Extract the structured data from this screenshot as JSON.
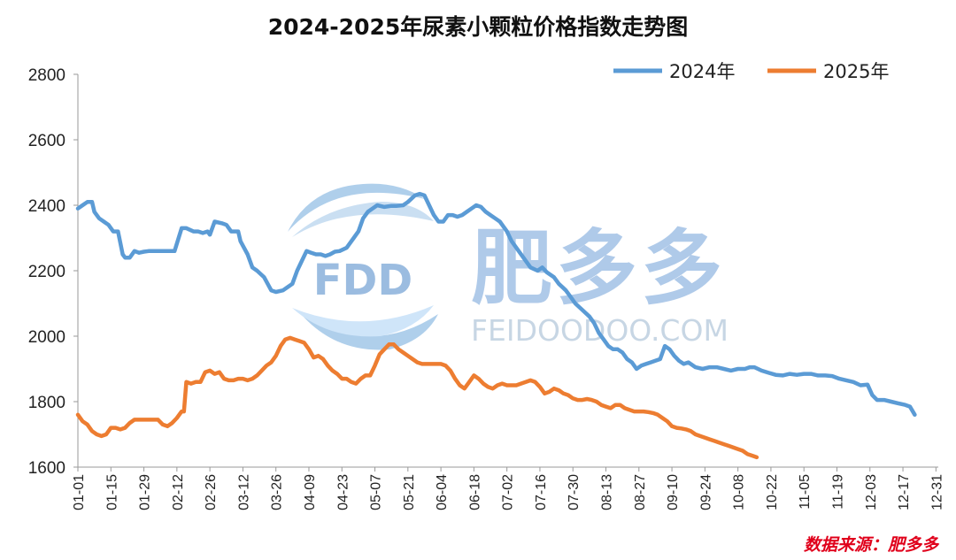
{
  "chart_data": {
    "type": "line",
    "title": "2024-2025年尿素小颗粒价格指数走势图",
    "xlabel": "",
    "ylabel": "",
    "ylim": [
      1600,
      2800
    ],
    "yticks": [
      1600,
      1800,
      2000,
      2200,
      2400,
      2600,
      2800
    ],
    "x_domain": [
      1,
      366
    ],
    "x_ticks": [
      {
        "label": "01-01",
        "day": 1
      },
      {
        "label": "01-15",
        "day": 15
      },
      {
        "label": "01-29",
        "day": 29
      },
      {
        "label": "02-12",
        "day": 43
      },
      {
        "label": "02-26",
        "day": 57
      },
      {
        "label": "03-12",
        "day": 71
      },
      {
        "label": "03-26",
        "day": 85
      },
      {
        "label": "04-09",
        "day": 99
      },
      {
        "label": "04-23",
        "day": 113
      },
      {
        "label": "05-07",
        "day": 127
      },
      {
        "label": "05-21",
        "day": 141
      },
      {
        "label": "06-04",
        "day": 155
      },
      {
        "label": "06-18",
        "day": 169
      },
      {
        "label": "07-02",
        "day": 183
      },
      {
        "label": "07-16",
        "day": 197
      },
      {
        "label": "07-30",
        "day": 211
      },
      {
        "label": "08-13",
        "day": 225
      },
      {
        "label": "08-27",
        "day": 239
      },
      {
        "label": "09-10",
        "day": 253
      },
      {
        "label": "09-24",
        "day": 267
      },
      {
        "label": "10-08",
        "day": 281
      },
      {
        "label": "10-22",
        "day": 295
      },
      {
        "label": "11-05",
        "day": 309
      },
      {
        "label": "11-19",
        "day": 323
      },
      {
        "label": "12-03",
        "day": 337
      },
      {
        "label": "12-17",
        "day": 351
      },
      {
        "label": "12-31",
        "day": 365
      }
    ],
    "legend_position": "top-right",
    "series": [
      {
        "name": "2024年",
        "color": "#5b9bd5",
        "points": [
          [
            1,
            2390
          ],
          [
            3,
            2400
          ],
          [
            5,
            2410
          ],
          [
            7,
            2410
          ],
          [
            8,
            2380
          ],
          [
            10,
            2360
          ],
          [
            12,
            2350
          ],
          [
            14,
            2340
          ],
          [
            16,
            2320
          ],
          [
            18,
            2320
          ],
          [
            20,
            2250
          ],
          [
            21,
            2240
          ],
          [
            23,
            2240
          ],
          [
            25,
            2260
          ],
          [
            27,
            2255
          ],
          [
            29,
            2258
          ],
          [
            31,
            2260
          ],
          [
            33,
            2260
          ],
          [
            36,
            2260
          ],
          [
            39,
            2260
          ],
          [
            42,
            2260
          ],
          [
            45,
            2330
          ],
          [
            47,
            2330
          ],
          [
            50,
            2320
          ],
          [
            52,
            2320
          ],
          [
            54,
            2315
          ],
          [
            56,
            2320
          ],
          [
            57,
            2310
          ],
          [
            59,
            2350
          ],
          [
            62,
            2345
          ],
          [
            64,
            2340
          ],
          [
            66,
            2320
          ],
          [
            69,
            2320
          ],
          [
            70,
            2290
          ],
          [
            73,
            2250
          ],
          [
            75,
            2210
          ],
          [
            77,
            2200
          ],
          [
            80,
            2180
          ],
          [
            83,
            2140
          ],
          [
            85,
            2135
          ],
          [
            88,
            2140
          ],
          [
            90,
            2150
          ],
          [
            92,
            2160
          ],
          [
            94,
            2200
          ],
          [
            96,
            2230
          ],
          [
            98,
            2260
          ],
          [
            100,
            2255
          ],
          [
            102,
            2250
          ],
          [
            104,
            2250
          ],
          [
            106,
            2245
          ],
          [
            108,
            2250
          ],
          [
            110,
            2258
          ],
          [
            112,
            2260
          ],
          [
            115,
            2270
          ],
          [
            118,
            2300
          ],
          [
            120,
            2320
          ],
          [
            122,
            2360
          ],
          [
            124,
            2380
          ],
          [
            126,
            2390
          ],
          [
            128,
            2400
          ],
          [
            131,
            2395
          ],
          [
            134,
            2398
          ],
          [
            136,
            2398
          ],
          [
            139,
            2400
          ],
          [
            141,
            2410
          ],
          [
            144,
            2430
          ],
          [
            146,
            2435
          ],
          [
            148,
            2430
          ],
          [
            150,
            2400
          ],
          [
            152,
            2370
          ],
          [
            154,
            2350
          ],
          [
            156,
            2350
          ],
          [
            158,
            2370
          ],
          [
            160,
            2370
          ],
          [
            162,
            2365
          ],
          [
            164,
            2370
          ],
          [
            166,
            2380
          ],
          [
            168,
            2390
          ],
          [
            170,
            2400
          ],
          [
            172,
            2395
          ],
          [
            174,
            2380
          ],
          [
            176,
            2370
          ],
          [
            178,
            2360
          ],
          [
            180,
            2350
          ],
          [
            183,
            2320
          ],
          [
            185,
            2290
          ],
          [
            188,
            2260
          ],
          [
            191,
            2230
          ],
          [
            193,
            2210
          ],
          [
            196,
            2200
          ],
          [
            198,
            2210
          ],
          [
            200,
            2195
          ],
          [
            203,
            2180
          ],
          [
            205,
            2160
          ],
          [
            208,
            2140
          ],
          [
            210,
            2120
          ],
          [
            212,
            2100
          ],
          [
            215,
            2080
          ],
          [
            218,
            2060
          ],
          [
            220,
            2040
          ],
          [
            222,
            2010
          ],
          [
            224,
            1990
          ],
          [
            226,
            1970
          ],
          [
            228,
            1960
          ],
          [
            230,
            1960
          ],
          [
            232,
            1950
          ],
          [
            234,
            1930
          ],
          [
            236,
            1920
          ],
          [
            238,
            1900
          ],
          [
            240,
            1910
          ],
          [
            242,
            1915
          ],
          [
            244,
            1920
          ],
          [
            246,
            1925
          ],
          [
            248,
            1930
          ],
          [
            250,
            1970
          ],
          [
            252,
            1960
          ],
          [
            254,
            1940
          ],
          [
            256,
            1925
          ],
          [
            258,
            1915
          ],
          [
            260,
            1920
          ],
          [
            263,
            1905
          ],
          [
            266,
            1900
          ],
          [
            269,
            1905
          ],
          [
            272,
            1905
          ],
          [
            275,
            1900
          ],
          [
            278,
            1895
          ],
          [
            281,
            1900
          ],
          [
            284,
            1900
          ],
          [
            286,
            1905
          ],
          [
            288,
            1905
          ],
          [
            291,
            1895
          ],
          [
            294,
            1888
          ],
          [
            297,
            1882
          ],
          [
            300,
            1880
          ],
          [
            303,
            1885
          ],
          [
            306,
            1882
          ],
          [
            309,
            1885
          ],
          [
            312,
            1885
          ],
          [
            315,
            1880
          ],
          [
            318,
            1880
          ],
          [
            321,
            1878
          ],
          [
            324,
            1870
          ],
          [
            327,
            1865
          ],
          [
            330,
            1860
          ],
          [
            333,
            1850
          ],
          [
            336,
            1852
          ],
          [
            338,
            1820
          ],
          [
            340,
            1805
          ],
          [
            343,
            1805
          ],
          [
            346,
            1800
          ],
          [
            349,
            1795
          ],
          [
            352,
            1790
          ],
          [
            354,
            1785
          ],
          [
            356,
            1760
          ]
        ]
      },
      {
        "name": "2025年",
        "color": "#ed7d31",
        "points": [
          [
            1,
            1760
          ],
          [
            3,
            1740
          ],
          [
            5,
            1730
          ],
          [
            7,
            1710
          ],
          [
            9,
            1700
          ],
          [
            11,
            1695
          ],
          [
            13,
            1700
          ],
          [
            15,
            1720
          ],
          [
            17,
            1720
          ],
          [
            19,
            1715
          ],
          [
            21,
            1720
          ],
          [
            23,
            1735
          ],
          [
            25,
            1745
          ],
          [
            27,
            1745
          ],
          [
            29,
            1745
          ],
          [
            31,
            1745
          ],
          [
            33,
            1745
          ],
          [
            35,
            1745
          ],
          [
            37,
            1730
          ],
          [
            39,
            1725
          ],
          [
            41,
            1735
          ],
          [
            43,
            1750
          ],
          [
            45,
            1770
          ],
          [
            46,
            1770
          ],
          [
            47,
            1860
          ],
          [
            49,
            1855
          ],
          [
            51,
            1860
          ],
          [
            53,
            1860
          ],
          [
            55,
            1890
          ],
          [
            57,
            1895
          ],
          [
            59,
            1885
          ],
          [
            61,
            1890
          ],
          [
            63,
            1870
          ],
          [
            65,
            1865
          ],
          [
            67,
            1865
          ],
          [
            69,
            1870
          ],
          [
            71,
            1870
          ],
          [
            73,
            1865
          ],
          [
            75,
            1870
          ],
          [
            77,
            1880
          ],
          [
            79,
            1895
          ],
          [
            81,
            1910
          ],
          [
            83,
            1920
          ],
          [
            85,
            1940
          ],
          [
            87,
            1970
          ],
          [
            89,
            1990
          ],
          [
            91,
            1995
          ],
          [
            93,
            1990
          ],
          [
            95,
            1985
          ],
          [
            97,
            1980
          ],
          [
            99,
            1960
          ],
          [
            101,
            1935
          ],
          [
            103,
            1940
          ],
          [
            105,
            1930
          ],
          [
            107,
            1910
          ],
          [
            109,
            1895
          ],
          [
            111,
            1885
          ],
          [
            113,
            1870
          ],
          [
            115,
            1870
          ],
          [
            117,
            1860
          ],
          [
            119,
            1855
          ],
          [
            121,
            1870
          ],
          [
            123,
            1880
          ],
          [
            125,
            1880
          ],
          [
            127,
            1910
          ],
          [
            129,
            1945
          ],
          [
            131,
            1960
          ],
          [
            133,
            1975
          ],
          [
            135,
            1975
          ],
          [
            137,
            1960
          ],
          [
            139,
            1950
          ],
          [
            141,
            1940
          ],
          [
            143,
            1930
          ],
          [
            145,
            1920
          ],
          [
            147,
            1915
          ],
          [
            149,
            1915
          ],
          [
            151,
            1915
          ],
          [
            153,
            1915
          ],
          [
            155,
            1915
          ],
          [
            157,
            1910
          ],
          [
            159,
            1895
          ],
          [
            161,
            1870
          ],
          [
            163,
            1850
          ],
          [
            165,
            1840
          ],
          [
            167,
            1860
          ],
          [
            169,
            1880
          ],
          [
            171,
            1870
          ],
          [
            173,
            1855
          ],
          [
            175,
            1845
          ],
          [
            177,
            1840
          ],
          [
            179,
            1850
          ],
          [
            181,
            1855
          ],
          [
            183,
            1850
          ],
          [
            185,
            1850
          ],
          [
            187,
            1850
          ],
          [
            189,
            1855
          ],
          [
            191,
            1860
          ],
          [
            193,
            1865
          ],
          [
            195,
            1860
          ],
          [
            197,
            1845
          ],
          [
            199,
            1825
          ],
          [
            201,
            1830
          ],
          [
            203,
            1840
          ],
          [
            205,
            1835
          ],
          [
            207,
            1825
          ],
          [
            209,
            1820
          ],
          [
            211,
            1810
          ],
          [
            213,
            1805
          ],
          [
            215,
            1805
          ],
          [
            217,
            1808
          ],
          [
            219,
            1805
          ],
          [
            221,
            1800
          ],
          [
            223,
            1790
          ],
          [
            225,
            1785
          ],
          [
            227,
            1780
          ],
          [
            229,
            1790
          ],
          [
            231,
            1790
          ],
          [
            233,
            1780
          ],
          [
            235,
            1775
          ],
          [
            237,
            1770
          ],
          [
            239,
            1770
          ],
          [
            241,
            1770
          ],
          [
            243,
            1768
          ],
          [
            245,
            1765
          ],
          [
            247,
            1760
          ],
          [
            249,
            1750
          ],
          [
            251,
            1740
          ],
          [
            253,
            1725
          ],
          [
            255,
            1720
          ],
          [
            257,
            1718
          ],
          [
            259,
            1715
          ],
          [
            261,
            1710
          ],
          [
            263,
            1700
          ],
          [
            265,
            1695
          ],
          [
            267,
            1690
          ],
          [
            269,
            1685
          ],
          [
            271,
            1680
          ],
          [
            273,
            1675
          ],
          [
            275,
            1670
          ],
          [
            277,
            1665
          ],
          [
            279,
            1660
          ],
          [
            281,
            1655
          ],
          [
            283,
            1650
          ],
          [
            285,
            1640
          ],
          [
            287,
            1635
          ],
          [
            289,
            1630
          ]
        ]
      }
    ]
  },
  "source_note": "数据来源：肥多多",
  "watermark": {
    "logo_text": "FDD",
    "brand_name": "肥多多",
    "brand_url": "FEIDOODOO.COM"
  }
}
